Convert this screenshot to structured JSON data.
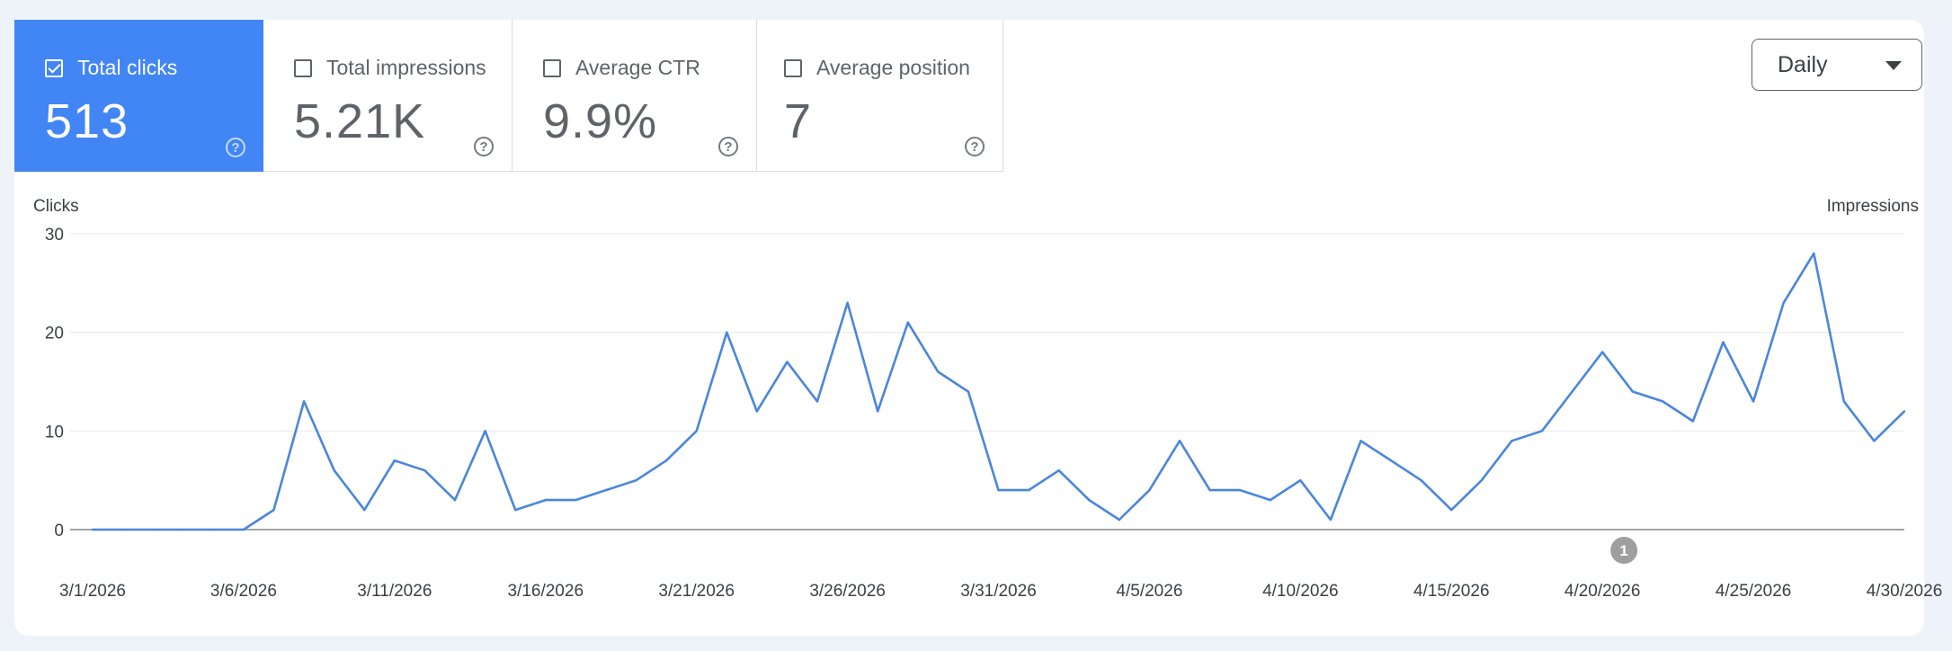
{
  "metrics": [
    {
      "label": "Total clicks",
      "value": "513",
      "checked": true
    },
    {
      "label": "Total impressions",
      "value": "5.21K",
      "checked": false
    },
    {
      "label": "Average CTR",
      "value": "9.9%",
      "checked": false
    },
    {
      "label": "Average position",
      "value": "7",
      "checked": false
    }
  ],
  "help_glyph": "?",
  "period_select": {
    "value": "Daily"
  },
  "annotation": {
    "label": "1",
    "date": "4/20/2026"
  },
  "colors": {
    "accent": "#4285f4",
    "line": "#4a86dc",
    "annotation": "#9e9e9e"
  },
  "chart_data": {
    "type": "line",
    "ylabel": "Clicks",
    "y2label": "Impressions",
    "ylim": [
      0,
      30
    ],
    "yticks": [
      0,
      10,
      20,
      30
    ],
    "grid": true,
    "xticks": [
      "3/1/2026",
      "3/6/2026",
      "3/11/2026",
      "3/16/2026",
      "3/21/2026",
      "3/26/2026",
      "3/31/2026",
      "4/5/2026",
      "4/10/2026",
      "4/15/2026",
      "4/20/2026",
      "4/25/2026",
      "4/30/2026"
    ],
    "x": [
      "3/1/2026",
      "3/2/2026",
      "3/3/2026",
      "3/4/2026",
      "3/5/2026",
      "3/6/2026",
      "3/7/2026",
      "3/8/2026",
      "3/9/2026",
      "3/10/2026",
      "3/11/2026",
      "3/12/2026",
      "3/13/2026",
      "3/14/2026",
      "3/15/2026",
      "3/16/2026",
      "3/17/2026",
      "3/18/2026",
      "3/19/2026",
      "3/20/2026",
      "3/21/2026",
      "3/22/2026",
      "3/23/2026",
      "3/24/2026",
      "3/25/2026",
      "3/26/2026",
      "3/27/2026",
      "3/28/2026",
      "3/29/2026",
      "3/30/2026",
      "3/31/2026",
      "4/1/2026",
      "4/2/2026",
      "4/3/2026",
      "4/4/2026",
      "4/5/2026",
      "4/6/2026",
      "4/7/2026",
      "4/8/2026",
      "4/9/2026",
      "4/10/2026",
      "4/11/2026",
      "4/12/2026",
      "4/13/2026",
      "4/14/2026",
      "4/15/2026",
      "4/16/2026",
      "4/17/2026",
      "4/18/2026",
      "4/19/2026",
      "4/20/2026",
      "4/21/2026",
      "4/22/2026",
      "4/23/2026",
      "4/24/2026",
      "4/25/2026",
      "4/26/2026",
      "4/27/2026",
      "4/28/2026",
      "4/29/2026",
      "4/30/2026"
    ],
    "series": [
      {
        "values": [
          0,
          0,
          0,
          0,
          0,
          0,
          2,
          13,
          6,
          2,
          7,
          6,
          3,
          10,
          2,
          3,
          3,
          4,
          5,
          7,
          10,
          20,
          12,
          17,
          13,
          23,
          12,
          21,
          16,
          14,
          4,
          4,
          6,
          3,
          1,
          4,
          9,
          4,
          4,
          3,
          5,
          1,
          9,
          7,
          5,
          2,
          5,
          9,
          10,
          14,
          18,
          14,
          13,
          11,
          19,
          13,
          23,
          28,
          13,
          9,
          12
        ]
      }
    ]
  }
}
